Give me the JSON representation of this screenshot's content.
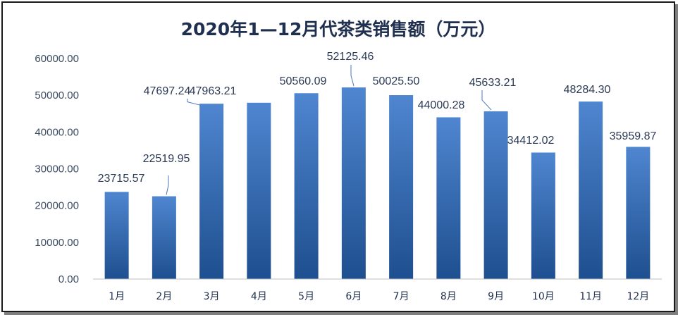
{
  "chart_data": {
    "type": "bar",
    "title": "2020年1—12月代茶类销售额（万元）",
    "categories": [
      "1月",
      "2月",
      "3月",
      "4月",
      "5月",
      "6月",
      "7月",
      "8月",
      "9月",
      "10月",
      "11月",
      "12月"
    ],
    "values": [
      23715.57,
      22519.95,
      47697.24,
      47963.21,
      50560.09,
      52125.46,
      50025.5,
      44000.28,
      45633.21,
      34412.02,
      48284.3,
      35959.87
    ],
    "data_labels": [
      "23715.57",
      "22519.95",
      "47697.24",
      "47963.21",
      "50560.09",
      "52125.46",
      "50025.50",
      "44000.28",
      "45633.21",
      "34412.02",
      "48284.30",
      "35959.87"
    ],
    "ylim": [
      0,
      60000
    ],
    "yticks": [
      0,
      10000,
      20000,
      30000,
      40000,
      50000,
      60000
    ],
    "ytick_labels": [
      "0.00",
      "10000.00",
      "20000.00",
      "30000.00",
      "40000.00",
      "50000.00",
      "60000.00"
    ],
    "xlabel": "",
    "ylabel": "",
    "grid": false,
    "legend": "none",
    "colors": {
      "bar_top": "#4f86d0",
      "bar_bottom": "#1e4f8f",
      "axis": "#bfbfbf",
      "title": "#1f2f4f"
    }
  }
}
